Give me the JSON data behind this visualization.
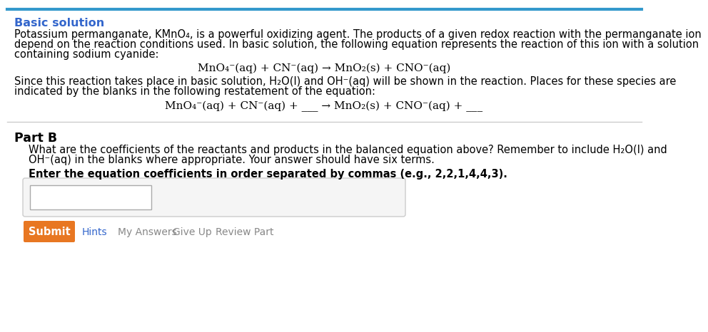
{
  "bg_color": "#ffffff",
  "top_line_color": "#3399cc",
  "divider_color": "#cccccc",
  "section_title": "Basic solution",
  "section_title_color": "#3366cc",
  "body_color": "#000000",
  "body_color_gray": "#666666",
  "para1_line1": "Potassium permanganate, KMnO₄, is a powerful oxidizing agent. The products of a given redox reaction with the permanganate ion",
  "para1_line2": "depend on the reaction conditions used. In basic solution, the following equation represents the reaction of this ion with a solution",
  "para1_line3": "containing sodium cyanide:",
  "eq1": "MnO₄⁻(aq) + CN⁻(aq) → MnO₂(s) + CNO⁻(aq)",
  "para2_line1": "Since this reaction takes place in basic solution, H₂O(l) and OH⁻(aq) will be shown in the reaction. Places for these species are",
  "para2_line2": "indicated by the blanks in the following restatement of the equation:",
  "eq2": "MnO₄⁻(aq) + CN⁻(aq) + ___ → MnO₂(s) + CNO⁻(aq) + ___",
  "partB_title": "Part B",
  "partB_q1": "What are the coefficients of the reactants and products in the balanced equation above? Remember to include H₂O(l) and",
  "partB_q2": "OH⁻(aq) in the blanks where appropriate. Your answer should have six terms.",
  "partB_bold": "Enter the equation coefficients in order separated by commas (e.g., 2,2,1,4,4,3).",
  "submit_label": "Submit",
  "submit_color": "#e87722",
  "submit_text_color": "#ffffff",
  "hint_label": "Hints",
  "hint_color": "#3366cc",
  "link_labels": [
    "My Answers",
    "Give Up",
    "Review Part"
  ],
  "link_color": "#888888",
  "font_size_body": 10.5,
  "font_size_title": 11.5,
  "font_size_partB": 12.5,
  "font_size_eq": 11
}
